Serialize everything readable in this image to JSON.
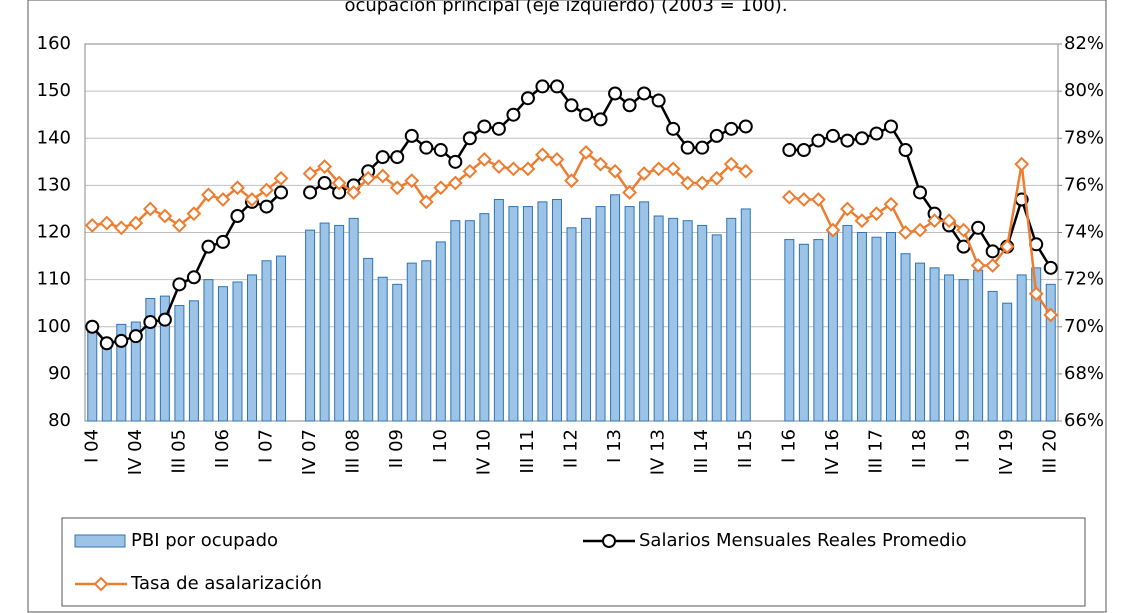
{
  "chart_data": {
    "type": "bar",
    "title": "ocupación principal (eje izquierdo) (2003 = 100).",
    "categories": [
      "I 04",
      null,
      null,
      "IV 04",
      null,
      null,
      "III 05",
      null,
      null,
      "II 06",
      null,
      null,
      "I 07",
      null,
      null,
      "IV 07",
      null,
      null,
      "III 08",
      null,
      null,
      "II 09",
      null,
      null,
      "I 10",
      null,
      null,
      "IV 10",
      null,
      null,
      "III 11",
      null,
      null,
      "II 12",
      null,
      null,
      "I 13",
      null,
      null,
      "IV 13",
      null,
      null,
      "III 14",
      null,
      null,
      "II 15",
      null,
      null,
      "I 16",
      null,
      null,
      "IV 16",
      null,
      null,
      "III 17",
      null,
      null,
      "II 18",
      null,
      null,
      "I 19",
      null,
      null,
      "IV 19",
      null,
      null,
      "III 20"
    ],
    "series": [
      {
        "name": "PBI por ocupado",
        "type": "bar",
        "color": "#9dc3e6",
        "values": [
          100,
          97,
          100.5,
          101,
          106,
          106.5,
          104.5,
          105.5,
          110,
          108.5,
          109.5,
          111,
          114,
          115,
          null,
          120.5,
          122,
          121.5,
          123,
          114.5,
          110.5,
          109,
          113.5,
          114,
          118,
          122.5,
          122.5,
          124,
          127,
          125.5,
          125.5,
          126.5,
          127,
          121,
          123,
          125.5,
          128,
          125.5,
          126.5,
          123.5,
          123,
          122.5,
          121.5,
          119.5,
          123,
          125,
          null,
          null,
          118.5,
          117.5,
          118.5,
          120,
          121.5,
          120,
          119,
          120,
          115.5,
          113.5,
          112.5,
          111,
          110,
          112,
          107.5,
          105,
          111,
          112.5,
          109
        ]
      },
      {
        "name": "Salarios Mensuales Reales Promedio",
        "type": "line",
        "color": "#000000",
        "values": [
          100,
          96.5,
          97,
          98,
          101,
          101.5,
          109,
          110.5,
          117,
          118,
          123.5,
          126.5,
          125.5,
          128.5,
          null,
          128.5,
          130.5,
          128.5,
          130,
          133,
          136,
          136,
          140.5,
          138,
          137.5,
          135,
          140,
          142.5,
          142,
          145,
          148.5,
          151,
          151,
          147,
          145,
          144,
          149.5,
          147,
          149.5,
          148,
          142,
          138,
          138,
          140.5,
          142,
          142.5,
          null,
          null,
          137.5,
          137.5,
          139.5,
          140.5,
          139.5,
          140,
          141,
          142.5,
          137.5,
          128.5,
          124,
          121.5,
          117,
          121,
          116,
          117,
          127,
          117.5,
          112.5
        ]
      },
      {
        "name": "Tasa de asalarización",
        "type": "line",
        "axis": "y2",
        "color": "#ed7d31",
        "values": [
          74.3,
          74.4,
          74.2,
          74.4,
          75,
          74.7,
          74.3,
          74.8,
          75.6,
          75.4,
          75.9,
          75.4,
          75.8,
          76.3,
          null,
          76.5,
          76.8,
          76.1,
          75.7,
          76.3,
          76.4,
          75.9,
          76.2,
          75.3,
          75.9,
          76.1,
          76.6,
          77.1,
          76.8,
          76.7,
          76.7,
          77.3,
          77.1,
          76.2,
          77.4,
          76.9,
          76.6,
          75.7,
          76.5,
          76.7,
          76.7,
          76.1,
          76.1,
          76.3,
          76.9,
          76.6,
          null,
          null,
          75.5,
          75.4,
          75.4,
          74.1,
          75,
          74.5,
          74.8,
          75.2,
          74,
          74.1,
          74.5,
          74.5,
          74.1,
          72.6,
          72.6,
          73.4,
          76.9,
          71.4,
          70.5
        ]
      }
    ],
    "ylim": [
      80,
      160
    ],
    "yticks": [
      80,
      90,
      100,
      110,
      120,
      130,
      140,
      150,
      160
    ],
    "y2lim": [
      66,
      82
    ],
    "y2ticks": [
      {
        "value": 66,
        "label": "66%"
      },
      {
        "value": 68,
        "label": "68%"
      },
      {
        "value": 70,
        "label": "70%"
      },
      {
        "value": 72,
        "label": "72%"
      },
      {
        "value": 74,
        "label": "74%"
      },
      {
        "value": 76,
        "label": "76%"
      },
      {
        "value": 78,
        "label": "78%"
      },
      {
        "value": 80,
        "label": "80%"
      },
      {
        "value": 82,
        "label": "82%"
      }
    ],
    "grid": true,
    "legend": "bottom"
  }
}
